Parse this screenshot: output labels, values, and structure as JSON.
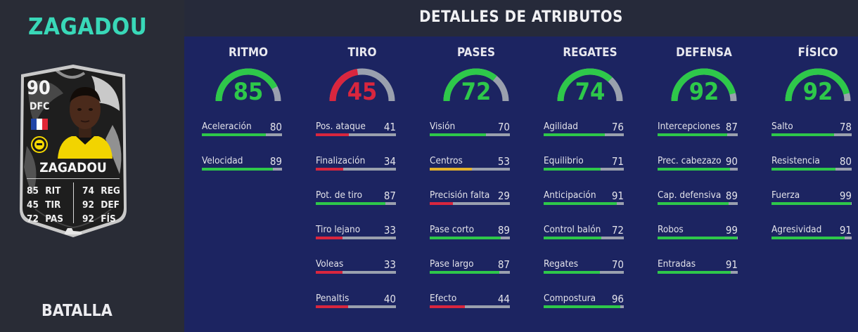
{
  "player": {
    "name": "ZAGADOU",
    "card_name": "ZAGADOU",
    "rating": "90",
    "position": "DFC",
    "chem_style": "BATALLA",
    "stats": [
      {
        "value": "85",
        "label": "RIT"
      },
      {
        "value": "45",
        "label": "TIR"
      },
      {
        "value": "72",
        "label": "PAS"
      },
      {
        "value": "74",
        "label": "REG"
      },
      {
        "value": "92",
        "label": "DEF"
      },
      {
        "value": "92",
        "label": "FÍS"
      }
    ]
  },
  "header": {
    "title": "DETALLES DE ATRIBUTOS"
  },
  "colors": {
    "green": "#2ec84a",
    "yellow": "#e2b12c",
    "red": "#d9263e",
    "grey": "#9aa0ae"
  },
  "categories": [
    {
      "title": "RITMO",
      "value": 85,
      "attributes": [
        {
          "name": "Aceleración",
          "value": 80
        },
        {
          "name": "Velocidad",
          "value": 89
        }
      ]
    },
    {
      "title": "TIRO",
      "value": 45,
      "attributes": [
        {
          "name": "Pos. ataque",
          "value": 41
        },
        {
          "name": "Finalización",
          "value": 34
        },
        {
          "name": "Pot. de tiro",
          "value": 87
        },
        {
          "name": "Tiro lejano",
          "value": 33
        },
        {
          "name": "Voleas",
          "value": 33
        },
        {
          "name": "Penaltis",
          "value": 40
        }
      ]
    },
    {
      "title": "PASES",
      "value": 72,
      "attributes": [
        {
          "name": "Visión",
          "value": 70
        },
        {
          "name": "Centros",
          "value": 53
        },
        {
          "name": "Precisión falta",
          "value": 29
        },
        {
          "name": "Pase corto",
          "value": 89
        },
        {
          "name": "Pase largo",
          "value": 87
        },
        {
          "name": "Efecto",
          "value": 44
        }
      ]
    },
    {
      "title": "REGATES",
      "value": 74,
      "attributes": [
        {
          "name": "Agilidad",
          "value": 76
        },
        {
          "name": "Equilibrio",
          "value": 71
        },
        {
          "name": "Anticipación",
          "value": 91
        },
        {
          "name": "Control balón",
          "value": 72
        },
        {
          "name": "Regates",
          "value": 70
        },
        {
          "name": "Compostura",
          "value": 96
        }
      ]
    },
    {
      "title": "DEFENSA",
      "value": 92,
      "attributes": [
        {
          "name": "Intercepciones",
          "value": 87
        },
        {
          "name": "Prec. cabezazo",
          "value": 90
        },
        {
          "name": "Cap. defensiva",
          "value": 89
        },
        {
          "name": "Robos",
          "value": 99
        },
        {
          "name": "Entradas",
          "value": 91
        }
      ]
    },
    {
      "title": "FÍSICO",
      "value": 92,
      "attributes": [
        {
          "name": "Salto",
          "value": 78
        },
        {
          "name": "Resistencia",
          "value": 80
        },
        {
          "name": "Fuerza",
          "value": 99
        },
        {
          "name": "Agresividad",
          "value": 91
        }
      ]
    }
  ]
}
